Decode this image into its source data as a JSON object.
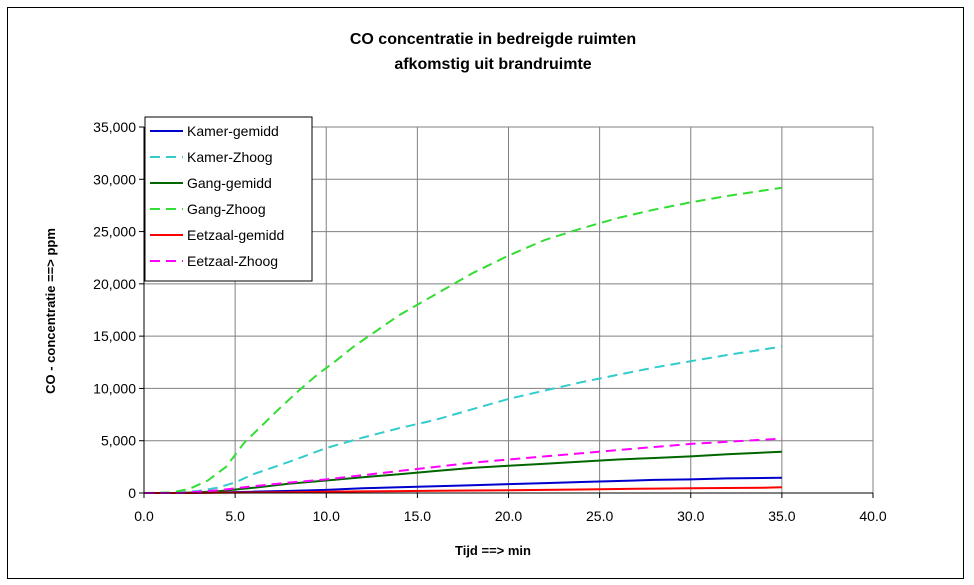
{
  "chart_data": {
    "type": "line",
    "title": "CO concentratie in bedreigde ruimten",
    "subtitle": "afkomstig uit brandruimte",
    "xlabel": "Tijd  ==> min",
    "ylabel": "CO - concentratie  ==> ppm",
    "xlim": [
      0,
      40
    ],
    "ylim": [
      0,
      35000
    ],
    "xticks": [
      0,
      5,
      10,
      15,
      20,
      25,
      30,
      35,
      40
    ],
    "xtick_labels": [
      "0.0",
      "5.0",
      "10.0",
      "15.0",
      "20.0",
      "25.0",
      "30.0",
      "35.0",
      "40.0"
    ],
    "yticks": [
      0,
      5000,
      10000,
      15000,
      20000,
      25000,
      30000,
      35000
    ],
    "ytick_labels": [
      "0",
      "5,000",
      "10,000",
      "15,000",
      "20,000",
      "25,000",
      "30,000",
      "35,000"
    ],
    "grid": true,
    "legend_position": "top-left",
    "series": [
      {
        "name": "Kamer-gemidd",
        "color": "#0000cc",
        "dash": "solid",
        "x": [
          0,
          2,
          4,
          6,
          8,
          10,
          12,
          14,
          16,
          18,
          20,
          22,
          24,
          26,
          28,
          30,
          32,
          35
        ],
        "y": [
          0,
          0,
          50,
          120,
          200,
          300,
          450,
          550,
          650,
          750,
          850,
          950,
          1050,
          1150,
          1250,
          1300,
          1400,
          1450
        ]
      },
      {
        "name": "Kamer-Zhoog",
        "color": "#33cccc",
        "dash": "dashed",
        "x": [
          0,
          2,
          3,
          4,
          5,
          6,
          8,
          10,
          12,
          14,
          16,
          18,
          20,
          22,
          24,
          26,
          28,
          30,
          32,
          35
        ],
        "y": [
          0,
          50,
          200,
          500,
          1000,
          1800,
          3000,
          4300,
          5300,
          6200,
          7000,
          8000,
          9000,
          9800,
          10600,
          11300,
          12000,
          12600,
          13200,
          14000
        ]
      },
      {
        "name": "Gang-gemidd",
        "color": "#006600",
        "dash": "solid",
        "x": [
          0,
          2,
          4,
          6,
          8,
          10,
          12,
          14,
          16,
          18,
          20,
          22,
          24,
          26,
          28,
          30,
          32,
          35
        ],
        "y": [
          0,
          0,
          150,
          500,
          900,
          1200,
          1500,
          1800,
          2100,
          2400,
          2600,
          2800,
          3000,
          3200,
          3350,
          3500,
          3700,
          3950
        ]
      },
      {
        "name": "Gang-Zhoog",
        "color": "#33dd33",
        "dash": "dashed",
        "x": [
          0,
          1.5,
          2.5,
          3.5,
          4.5,
          5.5,
          6.5,
          7.5,
          8.5,
          9.5,
          10.5,
          11.5,
          12.5,
          14,
          16,
          18,
          20,
          22,
          24,
          26,
          28,
          30,
          32,
          35
        ],
        "y": [
          0,
          50,
          400,
          1200,
          2500,
          4800,
          6500,
          8200,
          9800,
          11300,
          12600,
          14000,
          15200,
          17000,
          19000,
          21000,
          22700,
          24200,
          25300,
          26300,
          27100,
          27800,
          28400,
          29200
        ]
      },
      {
        "name": "Eetzaal-gemidd",
        "color": "#ff0000",
        "dash": "solid",
        "x": [
          0,
          2,
          4,
          6,
          8,
          10,
          12,
          14,
          16,
          18,
          20,
          22,
          24,
          26,
          28,
          30,
          32,
          34,
          35
        ],
        "y": [
          0,
          0,
          20,
          50,
          80,
          120,
          150,
          180,
          210,
          240,
          270,
          300,
          330,
          380,
          420,
          450,
          480,
          500,
          550
        ]
      },
      {
        "name": "Eetzaal-Zhoog",
        "color": "#ff00ff",
        "dash": "dashed",
        "x": [
          0,
          2,
          4,
          6,
          8,
          10,
          12,
          14,
          16,
          18,
          20,
          22,
          24,
          26,
          28,
          30,
          32,
          35
        ],
        "y": [
          0,
          0,
          250,
          650,
          1000,
          1300,
          1700,
          2100,
          2500,
          2900,
          3200,
          3500,
          3800,
          4100,
          4400,
          4700,
          4900,
          5200
        ]
      }
    ]
  }
}
